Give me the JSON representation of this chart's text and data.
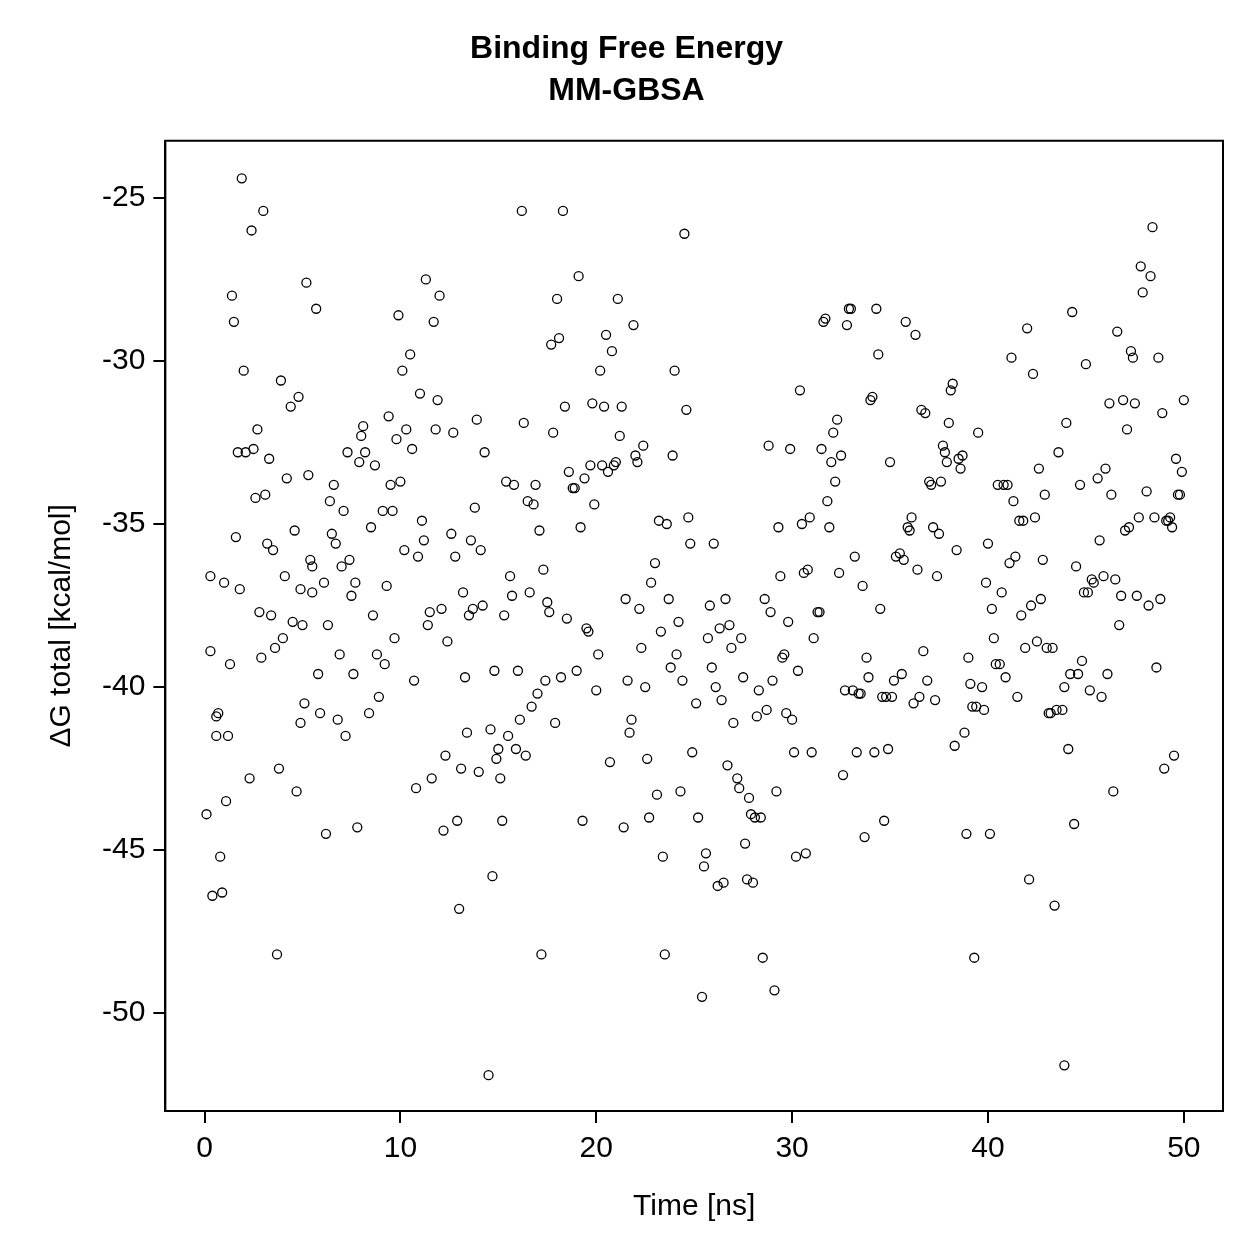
{
  "chart_data": {
    "type": "scatter",
    "title": "Binding Free Energy",
    "subtitle": "MM-GBSA",
    "xlabel": "Time [ns]",
    "ylabel": "ΔG total [kcal/mol]",
    "xlim": [
      -2,
      52
    ],
    "ylim": [
      -53,
      -23.25
    ],
    "xticks": [
      0,
      10,
      20,
      30,
      40,
      50
    ],
    "yticks": [
      -50,
      -45,
      -40,
      -35,
      -30,
      -25
    ],
    "grid": false,
    "legend": false,
    "marker": "circle",
    "series": [
      {
        "color": "#000000",
        "x": [
          0.1,
          0.3,
          0.3,
          0.4,
          0.6,
          0.6,
          0.7,
          0.8,
          0.9,
          1.0,
          1.1,
          1.2,
          1.3,
          1.4,
          1.5,
          1.6,
          1.7,
          1.8,
          1.9,
          2.0,
          2.1,
          2.3,
          2.4,
          2.5,
          2.6,
          2.7,
          2.8,
          2.9,
          3.0,
          3.1,
          3.2,
          3.3,
          3.4,
          3.5,
          3.6,
          3.7,
          3.8,
          3.9,
          4.0,
          4.1,
          4.2,
          4.4,
          4.5,
          4.6,
          4.7,
          4.8,
          4.9,
          4.9,
          5.0,
          5.1,
          5.2,
          5.3,
          5.4,
          5.5,
          5.5,
          5.7,
          5.8,
          5.9,
          6.1,
          6.2,
          6.3,
          6.4,
          6.5,
          6.6,
          6.7,
          6.8,
          6.9,
          7.0,
          7.1,
          7.2,
          7.3,
          7.4,
          7.5,
          7.6,
          7.7,
          7.8,
          7.9,
          8.0,
          8.1,
          8.2,
          8.4,
          8.5,
          8.6,
          8.7,
          8.8,
          8.9,
          9.1,
          9.2,
          9.3,
          9.4,
          9.5,
          9.6,
          9.7,
          9.8,
          9.9,
          10.0,
          10.1,
          10.2,
          10.3,
          10.5,
          10.6,
          10.7,
          10.8,
          10.9,
          11.0,
          11.1,
          11.2,
          11.3,
          11.4,
          11.5,
          11.6,
          11.7,
          11.8,
          11.9,
          12.0,
          12.1,
          12.2,
          12.3,
          12.4,
          12.6,
          12.7,
          12.8,
          12.9,
          13.0,
          13.1,
          13.2,
          13.3,
          13.4,
          13.5,
          13.6,
          13.7,
          13.8,
          13.9,
          14.0,
          14.1,
          14.2,
          14.3,
          14.5,
          14.6,
          14.7,
          14.8,
          14.9,
          15.0,
          15.1,
          15.2,
          15.3,
          15.4,
          15.5,
          15.6,
          15.7,
          15.8,
          15.9,
          16.0,
          16.1,
          16.2,
          16.3,
          16.4,
          16.5,
          16.6,
          16.7,
          16.8,
          16.9,
          17.0,
          17.1,
          17.2,
          17.3,
          17.4,
          17.5,
          17.6,
          17.7,
          17.8,
          17.9,
          18.0,
          18.1,
          18.2,
          18.3,
          18.4,
          18.5,
          18.6,
          18.8,
          18.9,
          19.0,
          19.1,
          19.2,
          19.3,
          19.4,
          19.5,
          19.6,
          19.7,
          19.8,
          19.9,
          20.0,
          20.1,
          20.2,
          20.3,
          20.4,
          20.5,
          20.6,
          20.7,
          20.8,
          20.9,
          21.0,
          21.1,
          21.2,
          21.3,
          21.4,
          21.5,
          21.6,
          21.7,
          21.8,
          21.9,
          22.0,
          22.1,
          22.2,
          22.3,
          22.4,
          22.5,
          22.6,
          22.7,
          22.8,
          23.0,
          23.1,
          23.2,
          23.3,
          23.4,
          23.5,
          23.6,
          23.7,
          23.8,
          23.9,
          24.0,
          24.1,
          24.2,
          24.3,
          24.4,
          24.5,
          24.6,
          24.7,
          24.8,
          24.9,
          25.1,
          25.2,
          25.4,
          25.5,
          25.6,
          25.7,
          25.8,
          25.9,
          26.0,
          26.1,
          26.2,
          26.3,
          26.4,
          26.5,
          26.6,
          26.7,
          26.8,
          26.9,
          27.0,
          27.2,
          27.3,
          27.4,
          27.5,
          27.6,
          27.7,
          27.8,
          27.9,
          28.0,
          28.1,
          28.2,
          28.3,
          28.4,
          28.5,
          28.6,
          28.7,
          28.8,
          28.9,
          29.0,
          29.1,
          29.2,
          29.3,
          29.4,
          29.5,
          29.6,
          29.7,
          29.8,
          29.9,
          30.0,
          30.1,
          30.2,
          30.3,
          30.4,
          30.5,
          30.6,
          30.7,
          30.8,
          30.9,
          31.0,
          31.1,
          31.3,
          31.4,
          31.5,
          31.6,
          31.7,
          31.8,
          31.9,
          32.0,
          32.1,
          32.2,
          32.3,
          32.4,
          32.5,
          32.6,
          32.7,
          32.8,
          32.9,
          33.0,
          33.1,
          33.2,
          33.3,
          33.4,
          33.5,
          33.6,
          33.7,
          33.8,
          33.9,
          34.0,
          34.1,
          34.2,
          34.3,
          34.4,
          34.5,
          34.6,
          34.7,
          34.8,
          34.9,
          35.0,
          35.1,
          35.2,
          35.3,
          35.5,
          35.6,
          35.7,
          35.8,
          35.9,
          36.0,
          36.1,
          36.2,
          36.3,
          36.4,
          36.5,
          36.6,
          36.7,
          36.8,
          36.9,
          37.0,
          37.1,
          37.2,
          37.3,
          37.4,
          37.5,
          37.6,
          37.7,
          37.8,
          37.9,
          38.0,
          38.1,
          38.2,
          38.3,
          38.4,
          38.5,
          38.6,
          38.7,
          38.8,
          38.9,
          39.0,
          39.1,
          39.2,
          39.3,
          39.4,
          39.5,
          39.7,
          39.8,
          39.9,
          40.0,
          40.1,
          40.2,
          40.3,
          40.4,
          40.5,
          40.6,
          40.7,
          40.8,
          40.9,
          41.0,
          41.1,
          41.2,
          41.3,
          41.4,
          41.5,
          41.6,
          41.7,
          41.8,
          41.9,
          42.0,
          42.1,
          42.2,
          42.3,
          42.4,
          42.5,
          42.6,
          42.7,
          42.8,
          42.9,
          43.0,
          43.1,
          43.2,
          43.3,
          43.4,
          43.5,
          43.6,
          43.8,
          43.9,
          44.0,
          44.1,
          44.2,
          44.3,
          44.4,
          44.5,
          44.6,
          44.7,
          44.8,
          44.9,
          45.0,
          45.1,
          45.2,
          45.3,
          45.4,
          43.9,
          45.6,
          45.7,
          45.8,
          45.9,
          46.0,
          46.1,
          46.2,
          46.3,
          46.4,
          46.5,
          46.6,
          46.7,
          46.8,
          46.9,
          47.0,
          47.1,
          47.2,
          47.3,
          47.4,
          47.5,
          47.6,
          47.7,
          47.8,
          47.9,
          48.1,
          48.2,
          48.3,
          48.4,
          48.5,
          48.6,
          48.7,
          48.8,
          48.9,
          49.0,
          49.1,
          49.2,
          49.3,
          49.4,
          49.5,
          49.6,
          49.7,
          49.8,
          49.9,
          50.0
        ],
        "values": [
          -43.9,
          -36.6,
          -38.9,
          -46.4,
          -40.9,
          -41.5,
          -40.8,
          -45.2,
          -46.3,
          -36.8,
          -43.5,
          -41.5,
          -39.3,
          -28.0,
          -28.8,
          -35.4,
          -32.8,
          -37.0,
          -24.4,
          -30.3,
          -32.8,
          -42.8,
          -26.0,
          -32.7,
          -34.2,
          -32.1,
          -37.7,
          -39.1,
          -25.4,
          -34.1,
          -35.6,
          -33.0,
          -37.8,
          -35.8,
          -38.8,
          -48.2,
          -42.5,
          -30.6,
          -38.5,
          -36.6,
          -33.6,
          -31.4,
          -38.0,
          -35.2,
          -43.2,
          -31.1,
          -37.0,
          -41.1,
          -38.1,
          -40.5,
          -27.6,
          -33.5,
          -36.1,
          -37.1,
          -36.3,
          -28.4,
          -39.6,
          -40.8,
          -36.8,
          -44.5,
          -38.1,
          -34.3,
          -35.3,
          -33.8,
          -35.6,
          -41.0,
          -39.0,
          -36.3,
          -34.6,
          -41.5,
          -32.8,
          -36.1,
          -37.2,
          -39.6,
          -36.8,
          -44.3,
          -33.1,
          -32.3,
          -32.0,
          -32.8,
          -40.8,
          -35.1,
          -37.8,
          -33.2,
          -39.0,
          -40.3,
          -34.6,
          -39.3,
          -36.9,
          -31.7,
          -33.8,
          -34.6,
          -38.5,
          -32.4,
          -28.6,
          -33.7,
          -30.3,
          -35.8,
          -32.1,
          -29.8,
          -32.7,
          -39.8,
          -43.1,
          -36.0,
          -31.0,
          -34.9,
          -35.5,
          -27.5,
          -38.1,
          -37.7,
          -42.8,
          -28.8,
          -32.1,
          -31.2,
          -28.0,
          -37.6,
          -44.4,
          -42.1,
          -38.6,
          -35.3,
          -32.2,
          -36.0,
          -44.1,
          -46.8,
          -42.5,
          -37.1,
          -39.7,
          -41.4,
          -37.8,
          -35.5,
          -37.6,
          -34.5,
          -31.8,
          -42.6,
          -35.8,
          -37.5,
          -32.8,
          -51.9,
          -41.3,
          -45.8,
          -39.5,
          -42.2,
          -41.9,
          -42.8,
          -44.1,
          -37.8,
          -33.7,
          -41.5,
          -36.6,
          -37.2,
          -33.8,
          -41.9,
          -39.5,
          -41.0,
          -25.4,
          -31.9,
          -42.1,
          -34.3,
          -37.1,
          -40.6,
          -34.4,
          -33.8,
          -40.2,
          -35.2,
          -48.2,
          -36.4,
          -39.8,
          -37.4,
          -37.7,
          -29.5,
          -32.2,
          -41.1,
          -28.1,
          -29.3,
          -39.7,
          -25.4,
          -31.4,
          -37.9,
          -33.4,
          -33.9,
          -33.9,
          -39.5,
          -27.4,
          -35.1,
          -44.1,
          -33.6,
          -38.2,
          -38.3,
          -33.2,
          -31.3,
          -34.4,
          -40.1,
          -39.0,
          -30.3,
          -33.2,
          -31.4,
          -29.2,
          -33.4,
          -42.3,
          -29.7,
          -33.2,
          -33.1,
          -28.1,
          -32.3,
          -31.4,
          -44.3,
          -37.3,
          -39.8,
          -41.4,
          -41.0,
          -28.9,
          -32.9,
          -33.1,
          -37.6,
          -38.8,
          -32.6,
          -40.0,
          -42.2,
          -44.0,
          -36.8,
          -36.2,
          -43.3,
          -34.9,
          -38.3,
          -45.2,
          -48.2,
          -35.0,
          -37.3,
          -39.4,
          -32.9,
          -30.3,
          -39.0,
          -38.0,
          -43.2,
          -39.8,
          -26.1,
          -31.5,
          -34.8,
          -35.6,
          -42.0,
          -40.5,
          -44.0,
          -49.5,
          -45.5,
          -45.1,
          -38.5,
          -37.5,
          -39.4,
          -35.6,
          -40.0,
          -46.1,
          -38.2,
          -40.4,
          -46.0,
          -37.3,
          -42.4,
          -38.1,
          -38.8,
          -41.1,
          -42.8,
          -43.1,
          -38.5,
          -39.7,
          -44.8,
          -45.9,
          -43.4,
          -43.9,
          -46.0,
          -44.0,
          -40.9,
          -40.1,
          -44.0,
          -48.3,
          -37.3,
          -40.7,
          -32.6,
          -37.7,
          -39.8,
          -49.3,
          -43.2,
          -35.1,
          -36.6,
          -39.1,
          -39.0,
          -40.8,
          -38.0,
          -32.7,
          -41.0,
          -42.0,
          -45.2,
          -39.5,
          -30.9,
          -35.0,
          -36.5,
          -45.1,
          -36.4,
          -34.8,
          -42.0,
          -38.5,
          -37.7,
          -37.7,
          -32.7,
          -28.8,
          -28.7,
          -34.3,
          -35.1,
          -33.1,
          -32.2,
          -33.7,
          -31.8,
          -36.5,
          -32.9,
          -42.7,
          -40.1,
          -28.9,
          -28.4,
          -28.4,
          -40.1,
          -36.0,
          -42.0,
          -40.2,
          -40.2,
          -36.9,
          -44.6,
          -39.1,
          -39.7,
          -31.2,
          -31.1,
          -42.0,
          -28.4,
          -29.8,
          -37.6,
          -40.3,
          -44.1,
          -40.3,
          -41.9,
          -33.1,
          -40.3,
          -39.8,
          -36.0,
          -35.9,
          -39.6,
          -36.1,
          -28.8,
          -35.1,
          -35.2,
          -34.8,
          -40.5,
          -29.2,
          -36.4,
          -40.3,
          -31.5,
          -38.9,
          -31.6,
          -39.8,
          -33.7,
          -33.8,
          -35.1,
          -40.4,
          -36.6,
          -35.3,
          -33.7,
          -32.6,
          -32.8,
          -33.1,
          -31.9,
          -30.9,
          -30.7,
          -41.8,
          -35.8,
          -33.0,
          -33.3,
          -32.9,
          -41.4,
          -44.5,
          -39.1,
          -39.9,
          -40.6,
          -48.3,
          -40.6,
          -32.2,
          -40.0,
          -40.7,
          -36.8,
          -35.6,
          -44.5,
          -37.6,
          -38.5,
          -39.3,
          -33.8,
          -39.3,
          -37.1,
          -33.8,
          -39.7,
          -33.8,
          -36.2,
          -29.9,
          -34.3,
          -36.0,
          -40.3,
          -34.9,
          -37.8,
          -34.9,
          -38.8,
          -29.0,
          -45.9,
          -37.5,
          -30.4,
          -34.8,
          -38.6,
          -33.3,
          -37.3,
          -36.1,
          -34.1,
          -38.8,
          -40.8,
          -40.8,
          -38.8,
          -46.7,
          -40.7,
          -32.8,
          -40.7,
          -40.0,
          -31.9,
          -41.9,
          -39.6,
          -28.5,
          -44.2,
          -36.3,
          -39.6,
          -33.8,
          -39.2,
          -37.1,
          -30.1,
          -37.1,
          -40.1,
          -36.7,
          -36.8,
          -51.6,
          -33.6,
          -35.5,
          -40.3,
          -36.6,
          -33.3,
          -39.6,
          -31.3,
          -34.1,
          -43.2,
          -36.7,
          -29.1,
          -38.1,
          -37.2,
          -31.2,
          -35.2,
          -32.1,
          -35.1,
          -29.7,
          -29.9,
          -31.3,
          -37.2,
          -34.8,
          -27.1,
          -27.9,
          -34.0,
          -37.5,
          -27.4,
          -25.9,
          -34.8,
          -39.4,
          -29.9,
          -37.3,
          -31.6,
          -42.5,
          -34.9,
          -34.9,
          -34.8,
          -35.1,
          -42.1,
          -33.0,
          -34.1,
          -34.1,
          -33.4,
          -31.2
        ]
      }
    ]
  }
}
